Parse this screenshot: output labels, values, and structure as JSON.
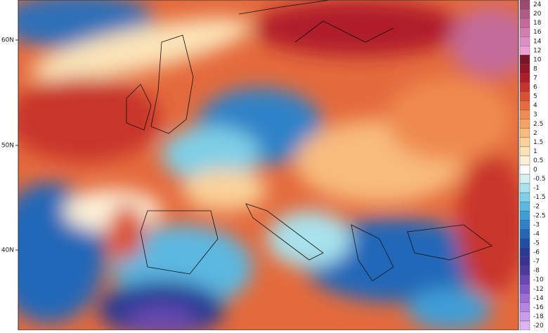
{
  "lat_labels": [
    "60N",
    "50N",
    "40N"
  ],
  "colorbar": {
    "entries": [
      {
        "label": "24",
        "color": "#9c4a6e"
      },
      {
        "label": "20",
        "color": "#b05a86"
      },
      {
        "label": "18",
        "color": "#c36b9a"
      },
      {
        "label": "16",
        "color": "#d27fb0"
      },
      {
        "label": "14",
        "color": "#e08fc4"
      },
      {
        "label": "12",
        "color": "#ec9fd6"
      },
      {
        "label": "10",
        "color": "#7a1426"
      },
      {
        "label": "8",
        "color": "#951628"
      },
      {
        "label": "7",
        "color": "#b01d2a"
      },
      {
        "label": "6",
        "color": "#c8342b"
      },
      {
        "label": "5",
        "color": "#da5032"
      },
      {
        "label": "4",
        "color": "#e66c3e"
      },
      {
        "label": "3",
        "color": "#ef8a50"
      },
      {
        "label": "2.5",
        "color": "#f4a364"
      },
      {
        "label": "2",
        "color": "#f8bb7c"
      },
      {
        "label": "1.5",
        "color": "#fad298"
      },
      {
        "label": "1",
        "color": "#fbe3b6"
      },
      {
        "label": "0.5",
        "color": "#fcf1d8"
      },
      {
        "label": "0",
        "color": "#ffffff"
      },
      {
        "label": "-0.5",
        "color": "#d4f0f2"
      },
      {
        "label": "-1",
        "color": "#a8e2ec"
      },
      {
        "label": "-1.5",
        "color": "#7fcfe6"
      },
      {
        "label": "-2",
        "color": "#5cb8e0"
      },
      {
        "label": "-2.5",
        "color": "#3f9ed6"
      },
      {
        "label": "-3",
        "color": "#2f82c8"
      },
      {
        "label": "-4",
        "color": "#2467b8"
      },
      {
        "label": "-5",
        "color": "#1f4ea4"
      },
      {
        "label": "-6",
        "color": "#283b94"
      },
      {
        "label": "-7",
        "color": "#3a3490"
      },
      {
        "label": "-8",
        "color": "#4e3a9c"
      },
      {
        "label": "-10",
        "color": "#6748b0"
      },
      {
        "label": "-12",
        "color": "#8458c4"
      },
      {
        "label": "-14",
        "color": "#a06cd6"
      },
      {
        "label": "-16",
        "color": "#b884e2"
      },
      {
        "label": "-18",
        "color": "#cc9cec"
      },
      {
        "label": "-20",
        "color": "#dcb4f2"
      }
    ]
  }
}
